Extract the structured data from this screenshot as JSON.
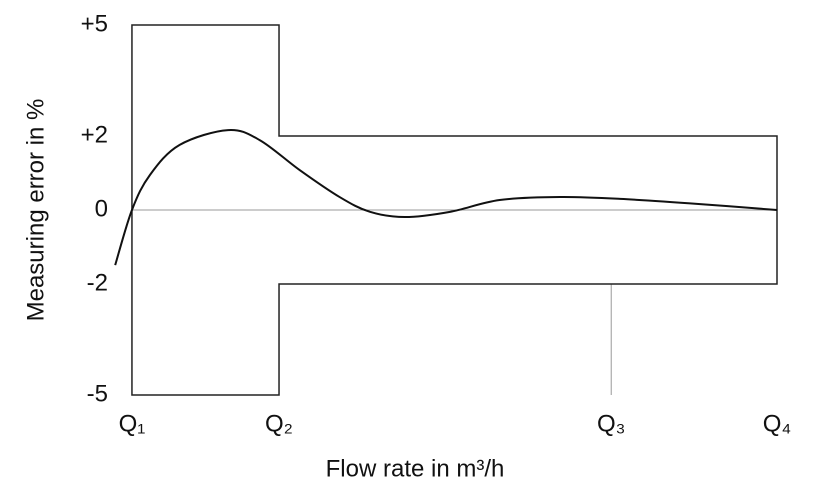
{
  "chart_data": {
    "type": "line",
    "x_label": "Flow rate in m³/h",
    "y_label": "Measuring error in %",
    "xlim": [
      -3,
      100
    ],
    "ylim": [
      -5,
      5
    ],
    "xticks": [
      {
        "value": 0,
        "label": "Q₁"
      },
      {
        "value": 22.8,
        "label": "Q₂"
      },
      {
        "value": 74.3,
        "label": "Q₃"
      },
      {
        "value": 100,
        "label": "Q₄"
      }
    ],
    "yticks": [
      {
        "value": 5,
        "label": "+5"
      },
      {
        "value": 2,
        "label": "+2"
      },
      0,
      -2,
      -5
    ],
    "tolerance": {
      "upper": [
        5,
        2
      ],
      "lower": [
        -5,
        -2
      ],
      "color": "#222222"
    },
    "series": [
      {
        "color": "#111111",
        "x": [
          -2.6,
          0,
          2.8,
          7.4,
          14.9,
          19.8,
          26,
          32.2,
          36.9,
          42.3,
          49.3,
          57,
          66.4,
          75.7,
          88.1,
          100
        ],
        "values": [
          -1.49,
          0,
          0.95,
          1.76,
          2.16,
          1.89,
          1.08,
          0.35,
          -0.05,
          -0.19,
          -0.05,
          0.27,
          0.35,
          0.3,
          0.16,
          0
        ]
      }
    ]
  }
}
